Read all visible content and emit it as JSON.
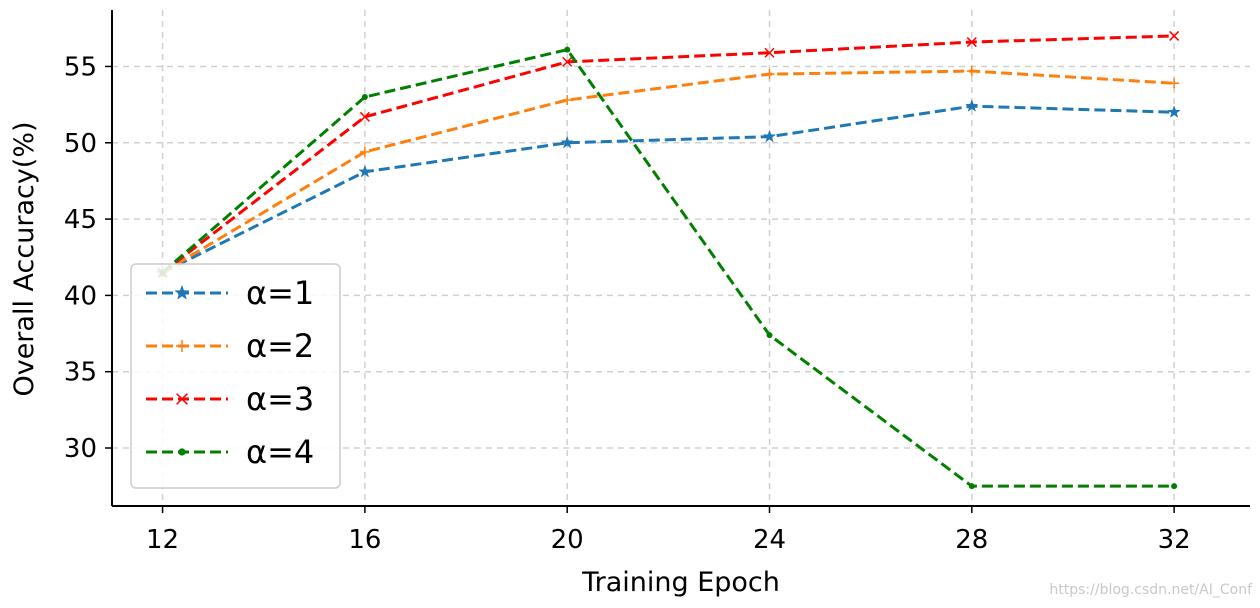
{
  "chart_data": {
    "type": "line",
    "title": "",
    "xlabel": "Training Epoch",
    "ylabel": "Overall Accuracy(%)",
    "x": [
      12,
      16,
      20,
      24,
      28,
      32
    ],
    "xticks": [
      "12",
      "16",
      "20",
      "24",
      "28",
      "32"
    ],
    "yticks": [
      "30",
      "35",
      "40",
      "45",
      "50",
      "55"
    ],
    "xlim": [
      11,
      33.5
    ],
    "ylim": [
      26.2,
      58.7
    ],
    "grid": true,
    "legend_position": "lower-left",
    "series": [
      {
        "name": "α=1",
        "color": "#1f77b4",
        "marker": "star",
        "values": [
          41.5,
          48.1,
          50.0,
          50.4,
          52.4,
          52.0
        ]
      },
      {
        "name": "α=2",
        "color": "#ff7f0e",
        "marker": "plus",
        "values": [
          41.5,
          49.4,
          52.8,
          54.5,
          54.7,
          53.9
        ]
      },
      {
        "name": "α=3",
        "color": "#ff0000",
        "marker": "x",
        "values": [
          41.5,
          51.7,
          55.3,
          55.9,
          56.6,
          57.0
        ]
      },
      {
        "name": "α=4",
        "color": "#008000",
        "marker": "dot",
        "values": [
          41.5,
          53.0,
          56.1,
          37.4,
          27.5,
          27.5
        ]
      }
    ]
  },
  "watermark": "https://blog.csdn.net/AI_Conf"
}
